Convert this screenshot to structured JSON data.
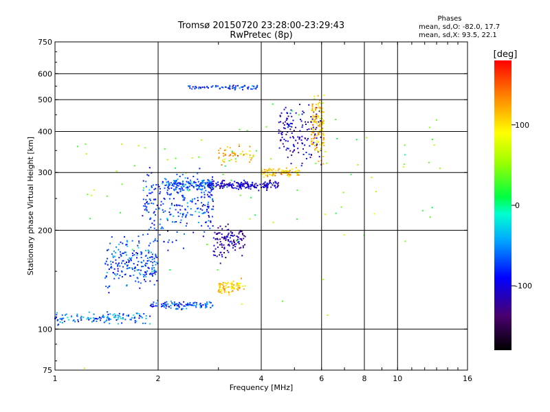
{
  "chart_data": {
    "type": "scatter",
    "title": "Tromsø 20150720 23:28:00-23:29:43",
    "subtitle": "RwPretec (8p)",
    "xlabel": "Frequency [MHz]",
    "ylabel": "Stationary phase Virtual Height [km]",
    "x_scale": "log",
    "y_scale": "log",
    "xlim": [
      1,
      16
    ],
    "ylim": [
      75,
      750
    ],
    "x_ticks": [
      1,
      2,
      4,
      6,
      8,
      10,
      16
    ],
    "y_ticks": [
      75,
      100,
      200,
      300,
      400,
      500,
      600,
      750
    ],
    "x_grid": [
      2,
      4,
      6,
      8,
      10
    ],
    "y_grid": [
      100,
      200,
      300,
      400,
      500,
      600
    ],
    "grid": true,
    "stats": {
      "header": "Phases",
      "line_o": "mean, sd,O: -82.0, 17.7",
      "line_x": "mean, sd,X:  93.5, 22.1"
    },
    "colorbar": {
      "label": "[deg]",
      "range": [
        -180,
        180
      ],
      "ticks": [
        "100",
        "0",
        "-100"
      ]
    },
    "traces": [
      {
        "x_range": [
          1.0,
          1.9
        ],
        "y_center": 108,
        "y_spread": 6,
        "phase": -60,
        "count": 130
      },
      {
        "x_range": [
          1.9,
          2.9
        ],
        "y_center": 118,
        "y_spread": 5,
        "phase": -70,
        "count": 110
      },
      {
        "x_range": [
          1.4,
          2.0
        ],
        "y_center": 160,
        "y_spread": 40,
        "phase": -70,
        "count": 220
      },
      {
        "x_range": [
          1.8,
          2.9
        ],
        "y_center": 240,
        "y_spread": 80,
        "phase": -75,
        "count": 260
      },
      {
        "x_range": [
          2.0,
          2.9
        ],
        "y_center": 275,
        "y_spread": 18,
        "phase": -65,
        "count": 140
      },
      {
        "x_range": [
          2.8,
          4.5
        ],
        "y_center": 275,
        "y_spread": 12,
        "phase": -105,
        "count": 180
      },
      {
        "x_range": [
          4.0,
          5.2
        ],
        "y_center": 300,
        "y_spread": 12,
        "phase": 110,
        "count": 90
      },
      {
        "x_range": [
          4.5,
          6.0
        ],
        "y_center": 400,
        "y_spread": 110,
        "phase": -110,
        "count": 150
      },
      {
        "x_range": [
          5.6,
          6.1
        ],
        "y_center": 420,
        "y_spread": 130,
        "phase": 110,
        "count": 140
      },
      {
        "x_range": [
          2.9,
          3.6
        ],
        "y_center": 185,
        "y_spread": 30,
        "phase": -115,
        "count": 120
      },
      {
        "x_range": [
          3.0,
          3.6
        ],
        "y_center": 135,
        "y_spread": 10,
        "phase": 110,
        "count": 80
      },
      {
        "x_range": [
          3.0,
          3.8
        ],
        "y_center": 340,
        "y_spread": 35,
        "phase": 115,
        "count": 50
      },
      {
        "x_range": [
          2.4,
          3.9
        ],
        "y_center": 545,
        "y_spread": 12,
        "phase": -75,
        "count": 70
      },
      {
        "x_range": [
          1.1,
          16.0
        ],
        "y_center": 300,
        "y_spread": 260,
        "phase": 40,
        "count": 90
      }
    ]
  }
}
